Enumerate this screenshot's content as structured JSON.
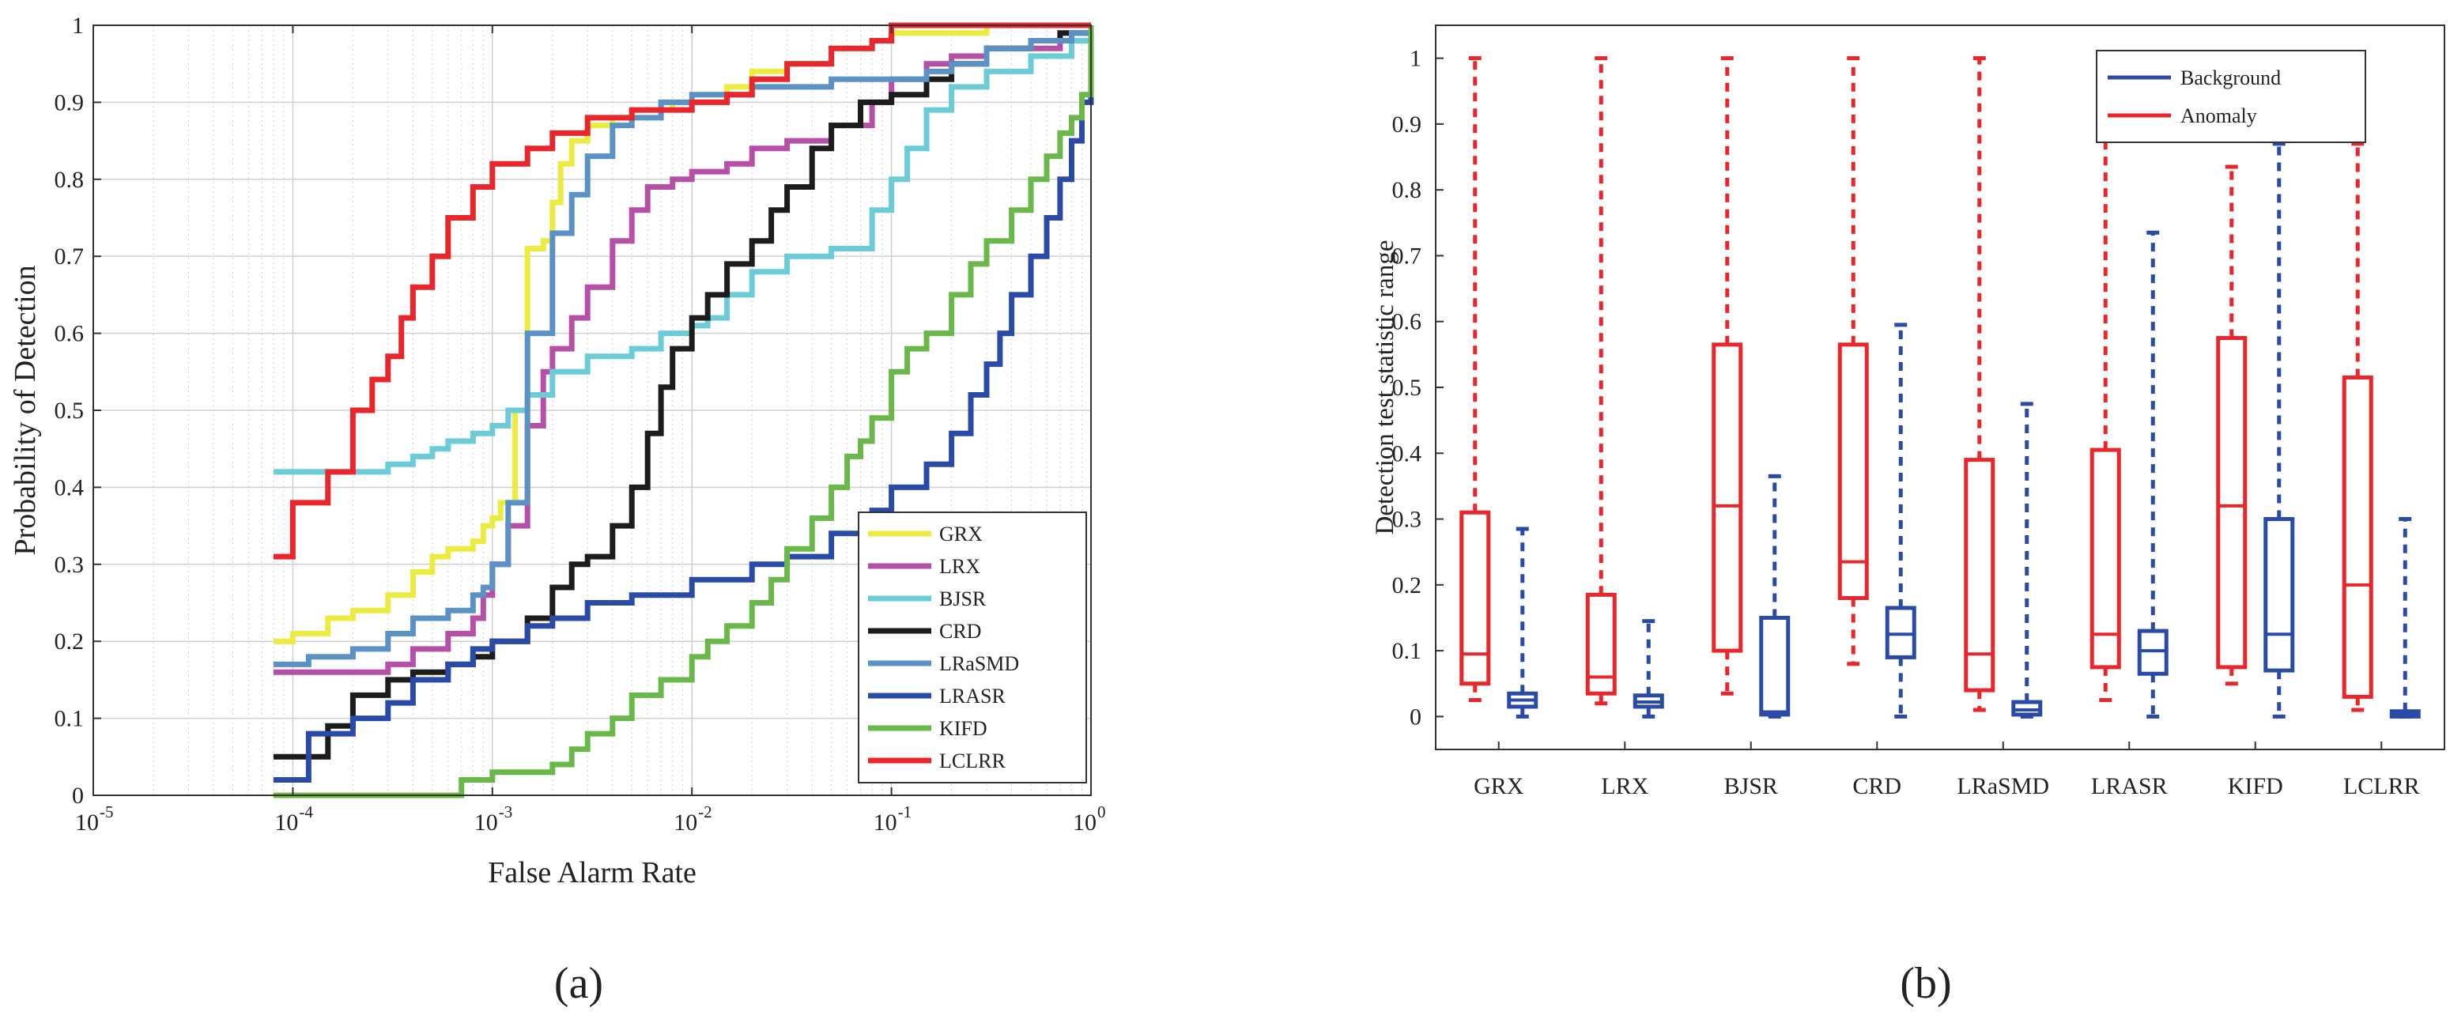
{
  "chart_data": [
    {
      "type": "line",
      "subtitle": "(a)",
      "xlabel": "False Alarm Rate",
      "ylabel": "Probability of Detection",
      "xscale": "log",
      "xlim": [
        1e-05,
        1
      ],
      "ylim": [
        0,
        1
      ],
      "x_tick_bases": [
        "10",
        "10",
        "10",
        "10",
        "10",
        "10"
      ],
      "x_tick_exps": [
        "-5",
        "-4",
        "-3",
        "-2",
        "-1",
        "0"
      ],
      "y_tick_labels": [
        "0",
        "0.1",
        "0.2",
        "0.3",
        "0.4",
        "0.5",
        "0.6",
        "0.7",
        "0.8",
        "0.9",
        "1"
      ],
      "grid": true,
      "legend_position": "bottom-right",
      "series": [
        {
          "name": "GRX",
          "color": "#ecec40",
          "x": [
            8e-05,
            0.0001,
            0.00015,
            0.0002,
            0.0003,
            0.0004,
            0.0005,
            0.0006,
            0.0008,
            0.0009,
            0.001,
            0.0011,
            0.0013,
            0.0015,
            0.0018,
            0.002,
            0.0022,
            0.0025,
            0.003,
            0.004,
            0.005,
            0.006,
            0.008,
            0.01,
            0.015,
            0.02,
            0.03,
            0.05,
            0.08,
            0.1,
            0.2,
            0.3,
            0.5,
            0.8,
            1
          ],
          "y": [
            0.2,
            0.21,
            0.23,
            0.24,
            0.26,
            0.29,
            0.31,
            0.32,
            0.33,
            0.35,
            0.36,
            0.38,
            0.5,
            0.71,
            0.72,
            0.77,
            0.82,
            0.85,
            0.87,
            0.88,
            0.89,
            0.89,
            0.9,
            0.9,
            0.92,
            0.94,
            0.95,
            0.97,
            0.98,
            0.99,
            0.99,
            1,
            1,
            1,
            1
          ]
        },
        {
          "name": "LRX",
          "color": "#b64fa6",
          "x": [
            8e-05,
            0.0001,
            0.0002,
            0.0003,
            0.0004,
            0.0006,
            0.0008,
            0.0009,
            0.001,
            0.0012,
            0.0015,
            0.0018,
            0.002,
            0.0025,
            0.003,
            0.004,
            0.005,
            0.006,
            0.008,
            0.01,
            0.015,
            0.02,
            0.03,
            0.05,
            0.08,
            0.1,
            0.15,
            0.2,
            0.3,
            0.5,
            0.7,
            1
          ],
          "y": [
            0.16,
            0.16,
            0.16,
            0.17,
            0.19,
            0.21,
            0.23,
            0.26,
            0.3,
            0.35,
            0.48,
            0.55,
            0.58,
            0.62,
            0.66,
            0.72,
            0.76,
            0.79,
            0.8,
            0.81,
            0.82,
            0.84,
            0.85,
            0.87,
            0.9,
            0.93,
            0.95,
            0.96,
            0.97,
            0.97,
            0.98,
            1
          ]
        },
        {
          "name": "BJSR",
          "color": "#6bccd8",
          "x": [
            8e-05,
            0.0002,
            0.0003,
            0.0004,
            0.0005,
            0.0006,
            0.0008,
            0.001,
            0.0012,
            0.0015,
            0.002,
            0.003,
            0.005,
            0.007,
            0.01,
            0.012,
            0.015,
            0.02,
            0.03,
            0.05,
            0.08,
            0.1,
            0.12,
            0.15,
            0.2,
            0.3,
            0.5,
            0.8,
            1
          ],
          "y": [
            0.42,
            0.42,
            0.43,
            0.44,
            0.45,
            0.46,
            0.47,
            0.48,
            0.5,
            0.52,
            0.55,
            0.57,
            0.58,
            0.6,
            0.61,
            0.62,
            0.65,
            0.68,
            0.7,
            0.71,
            0.76,
            0.8,
            0.84,
            0.89,
            0.92,
            0.94,
            0.96,
            0.98,
            1
          ]
        },
        {
          "name": "CRD",
          "color": "#1c1c1c",
          "x": [
            8e-05,
            0.00012,
            0.00015,
            0.0002,
            0.0003,
            0.0004,
            0.0006,
            0.0008,
            0.001,
            0.0015,
            0.002,
            0.0025,
            0.003,
            0.004,
            0.005,
            0.006,
            0.007,
            0.008,
            0.01,
            0.012,
            0.015,
            0.02,
            0.025,
            0.03,
            0.04,
            0.05,
            0.07,
            0.1,
            0.15,
            0.2,
            0.3,
            0.5,
            0.7,
            1
          ],
          "y": [
            0.05,
            0.05,
            0.09,
            0.13,
            0.15,
            0.16,
            0.17,
            0.18,
            0.2,
            0.23,
            0.27,
            0.3,
            0.31,
            0.35,
            0.4,
            0.47,
            0.53,
            0.58,
            0.62,
            0.65,
            0.69,
            0.72,
            0.76,
            0.79,
            0.84,
            0.87,
            0.9,
            0.91,
            0.93,
            0.95,
            0.97,
            0.98,
            0.99,
            1
          ]
        },
        {
          "name": "LRaSMD",
          "color": "#5a92c6",
          "x": [
            8e-05,
            0.00012,
            0.0002,
            0.0003,
            0.0004,
            0.0006,
            0.0008,
            0.0009,
            0.001,
            0.0012,
            0.0015,
            0.002,
            0.0025,
            0.003,
            0.004,
            0.005,
            0.007,
            0.01,
            0.015,
            0.02,
            0.03,
            0.05,
            0.1,
            0.15,
            0.2,
            0.3,
            0.5,
            0.8,
            1
          ],
          "y": [
            0.17,
            0.18,
            0.19,
            0.21,
            0.23,
            0.24,
            0.26,
            0.27,
            0.3,
            0.38,
            0.6,
            0.73,
            0.78,
            0.83,
            0.87,
            0.88,
            0.9,
            0.91,
            0.91,
            0.92,
            0.92,
            0.93,
            0.93,
            0.94,
            0.95,
            0.97,
            0.98,
            0.99,
            1
          ]
        },
        {
          "name": "LRASR",
          "color": "#2a4aa8",
          "x": [
            8e-05,
            0.00012,
            0.0002,
            0.0003,
            0.0004,
            0.0006,
            0.0008,
            0.001,
            0.0015,
            0.002,
            0.003,
            0.005,
            0.01,
            0.02,
            0.03,
            0.05,
            0.08,
            0.1,
            0.15,
            0.2,
            0.25,
            0.3,
            0.35,
            0.4,
            0.5,
            0.6,
            0.7,
            0.8,
            0.9,
            1
          ],
          "y": [
            0.02,
            0.08,
            0.1,
            0.12,
            0.15,
            0.17,
            0.19,
            0.2,
            0.22,
            0.23,
            0.25,
            0.26,
            0.28,
            0.3,
            0.31,
            0.34,
            0.37,
            0.4,
            0.43,
            0.47,
            0.52,
            0.56,
            0.6,
            0.65,
            0.7,
            0.75,
            0.8,
            0.85,
            0.9,
            1
          ]
        },
        {
          "name": "KIFD",
          "color": "#6ab84a",
          "x": [
            8e-05,
            0.0006,
            0.0007,
            0.001,
            0.0015,
            0.002,
            0.0025,
            0.003,
            0.004,
            0.005,
            0.007,
            0.01,
            0.012,
            0.015,
            0.02,
            0.025,
            0.03,
            0.04,
            0.05,
            0.06,
            0.07,
            0.08,
            0.1,
            0.12,
            0.15,
            0.2,
            0.25,
            0.3,
            0.4,
            0.5,
            0.6,
            0.7,
            0.8,
            0.9,
            1
          ],
          "y": [
            0,
            0,
            0.02,
            0.03,
            0.03,
            0.04,
            0.06,
            0.08,
            0.1,
            0.13,
            0.15,
            0.18,
            0.2,
            0.22,
            0.25,
            0.28,
            0.32,
            0.36,
            0.4,
            0.44,
            0.46,
            0.49,
            0.55,
            0.58,
            0.6,
            0.65,
            0.69,
            0.72,
            0.76,
            0.8,
            0.83,
            0.86,
            0.88,
            0.91,
            1
          ]
        },
        {
          "name": "LCLRR",
          "color": "#e8262b",
          "x": [
            8e-05,
            0.0001,
            0.00015,
            0.0002,
            0.00025,
            0.0003,
            0.00035,
            0.0004,
            0.0005,
            0.0006,
            0.0008,
            0.001,
            0.0015,
            0.002,
            0.003,
            0.005,
            0.01,
            0.015,
            0.02,
            0.03,
            0.05,
            0.08,
            0.1,
            0.2,
            0.5,
            1
          ],
          "y": [
            0.31,
            0.38,
            0.42,
            0.5,
            0.54,
            0.57,
            0.62,
            0.66,
            0.7,
            0.75,
            0.79,
            0.82,
            0.84,
            0.86,
            0.88,
            0.89,
            0.9,
            0.91,
            0.93,
            0.95,
            0.97,
            0.98,
            1,
            1,
            1,
            1
          ]
        }
      ]
    },
    {
      "type": "box",
      "subtitle": "(b)",
      "ylabel": "Detection test statistic range",
      "ylim": [
        -0.05,
        1.05
      ],
      "y_tick_labels": [
        "0",
        "0.1",
        "0.2",
        "0.3",
        "0.4",
        "0.5",
        "0.6",
        "0.7",
        "0.8",
        "0.9",
        "1"
      ],
      "categories": [
        "GRX",
        "LRX",
        "BJSR",
        "CRD",
        "LRaSMD",
        "LRASR",
        "KIFD",
        "LCLRR"
      ],
      "legend_position": "top-right",
      "series": [
        {
          "name": "Background",
          "color": "#2a4aa8",
          "boxes": [
            {
              "min": 0.0,
              "q1": 0.015,
              "median": 0.025,
              "q3": 0.035,
              "max": 0.285
            },
            {
              "min": 0.0,
              "q1": 0.015,
              "median": 0.022,
              "q3": 0.032,
              "max": 0.145
            },
            {
              "min": 0.0,
              "q1": 0.003,
              "median": 0.007,
              "q3": 0.15,
              "max": 0.365
            },
            {
              "min": 0.0,
              "q1": 0.09,
              "median": 0.125,
              "q3": 0.165,
              "max": 0.595
            },
            {
              "min": 0.0,
              "q1": 0.003,
              "median": 0.01,
              "q3": 0.022,
              "max": 0.475
            },
            {
              "min": 0.0,
              "q1": 0.065,
              "median": 0.1,
              "q3": 0.13,
              "max": 0.735
            },
            {
              "min": 0.0,
              "q1": 0.07,
              "median": 0.125,
              "q3": 0.3,
              "max": 0.87
            },
            {
              "min": 0.0,
              "q1": 0.0,
              "median": 0.003,
              "q3": 0.008,
              "max": 0.3
            }
          ]
        },
        {
          "name": "Anomaly",
          "color": "#e8262b",
          "boxes": [
            {
              "min": 0.025,
              "q1": 0.05,
              "median": 0.095,
              "q3": 0.31,
              "max": 1.0
            },
            {
              "min": 0.02,
              "q1": 0.035,
              "median": 0.06,
              "q3": 0.185,
              "max": 1.0
            },
            {
              "min": 0.035,
              "q1": 0.1,
              "median": 0.32,
              "q3": 0.565,
              "max": 1.0
            },
            {
              "min": 0.08,
              "q1": 0.18,
              "median": 0.235,
              "q3": 0.565,
              "max": 1.0
            },
            {
              "min": 0.01,
              "q1": 0.04,
              "median": 0.095,
              "q3": 0.39,
              "max": 1.0
            },
            {
              "min": 0.025,
              "q1": 0.075,
              "median": 0.125,
              "q3": 0.405,
              "max": 1.0
            },
            {
              "min": 0.05,
              "q1": 0.075,
              "median": 0.32,
              "q3": 0.575,
              "max": 0.835
            },
            {
              "min": 0.01,
              "q1": 0.03,
              "median": 0.2,
              "q3": 0.515,
              "max": 0.87
            }
          ]
        }
      ]
    }
  ]
}
